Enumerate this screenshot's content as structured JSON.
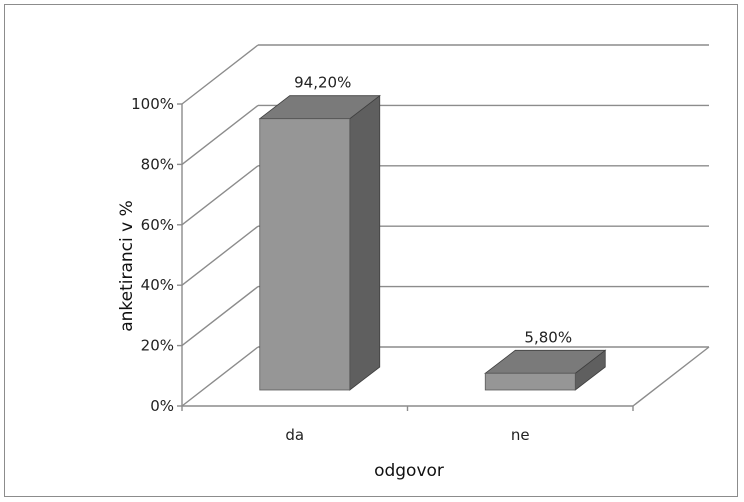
{
  "chart_data": {
    "type": "bar",
    "categories": [
      "da",
      "ne"
    ],
    "values": [
      94.2,
      5.8
    ],
    "value_labels": [
      "94,20%",
      "5,80%"
    ],
    "title": "",
    "xlabel": "odgovor",
    "ylabel": "anketiranci v %",
    "ylim": [
      0,
      100
    ],
    "y_ticks": [
      0,
      20,
      40,
      60,
      80,
      100
    ],
    "y_tick_labels": [
      "0%",
      "20%",
      "40%",
      "60%",
      "80%",
      "100%"
    ],
    "grid": true,
    "style": "3d-column",
    "colors": {
      "bar_front": "#969696",
      "bar_top": "#7a7a7a",
      "bar_side": "#5f5f5f",
      "grid": "#8c8c8c"
    }
  }
}
